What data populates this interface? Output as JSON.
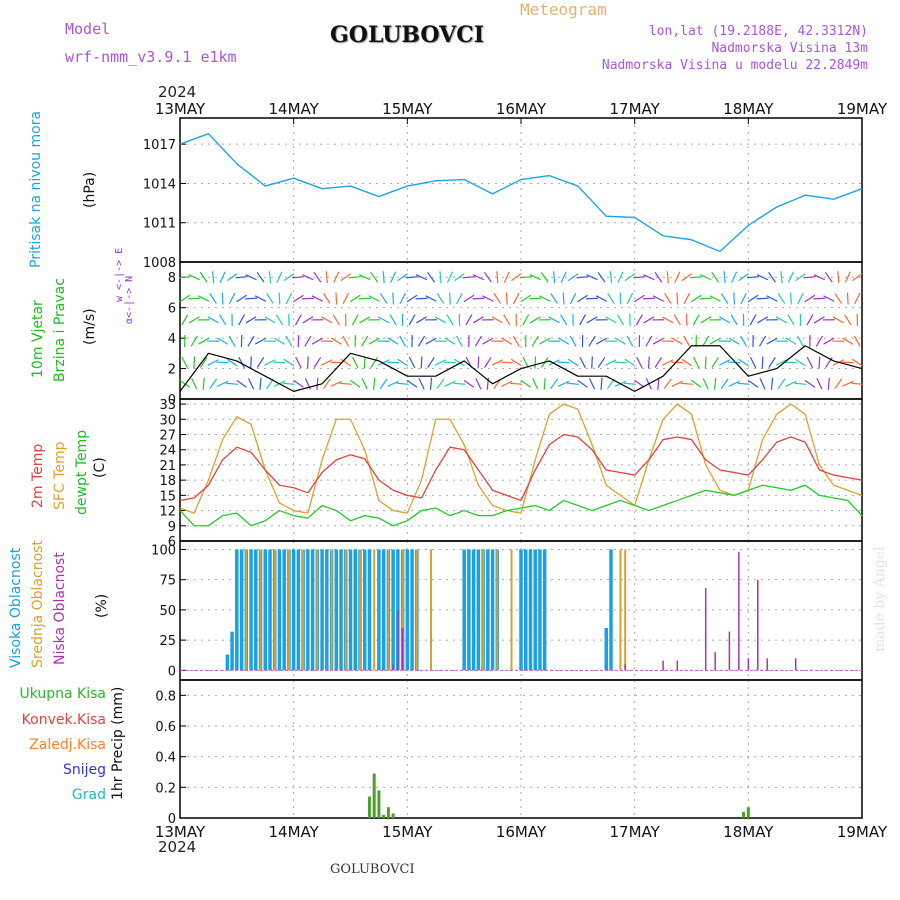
{
  "header": {
    "model_label": "Model",
    "model_name": "wrf-nmm_v3.9.1 e1km",
    "station": "GOLUBOVCI",
    "product": "Meteogram",
    "lonlat": "lon,lat (19.2188E, 42.3312N)",
    "elev": "Nadmorska Visina 13m",
    "model_elev": "Nadmorska Visina u modelu 22.2849m",
    "footer_station": "GOLUBOVCI",
    "watermark": "made by Angel"
  },
  "colors": {
    "pressure": "#1aa6e6",
    "temp2m": "#e84040",
    "sfc": "#e0a030",
    "dew": "#22cc22",
    "high_cloud": "#1aa0e6",
    "mid_cloud": "#d8a030",
    "low_cloud": "#b030b0",
    "precip": "#4aa028",
    "label_wind": "#22bb22",
    "label_wind_dir": "#9933cc",
    "label_total": "#22bb22",
    "label_conv": "#e84040",
    "label_frz": "#ff7f27",
    "label_snow": "#3333dd",
    "label_hail": "#22bbbb"
  },
  "time_axis": {
    "year": "2024",
    "days": [
      "13MAY",
      "14MAY",
      "15MAY",
      "16MAY",
      "17MAY",
      "18MAY",
      "19MAY"
    ]
  },
  "panels": {
    "pressure": {
      "label": "Pritisak na nivou mora",
      "unit": "(hPa)",
      "ticks": [
        "1017",
        "1014",
        "1011",
        "1008"
      ]
    },
    "wind": {
      "label1": "10m Vjetar",
      "label2": "Brzina i Pravac",
      "unit": "(m/s)",
      "dir_a": "w <-|-> E",
      "dir_b": "α<-|-> N",
      "ticks": [
        "8",
        "6",
        "4",
        "2",
        "0"
      ]
    },
    "temp": {
      "label_a": "2m Temp",
      "label_b": "SFC Temp",
      "label_c": "dewpt Temp",
      "unit": "(C)",
      "ticks": [
        "33",
        "30",
        "27",
        "24",
        "21",
        "18",
        "15",
        "12",
        "9",
        "6"
      ]
    },
    "cloud": {
      "label_a": "Visoka Oblacnost",
      "label_b": "Srednja Oblacnost",
      "label_c": "Niska Oblacnost",
      "unit": "(%)",
      "ticks": [
        "100",
        "75",
        "50",
        "25",
        "0"
      ]
    },
    "precip": {
      "label": "1hr Precip (mm)",
      "ticks": [
        "0.8",
        "0.6",
        "0.4",
        "0.2",
        "0"
      ],
      "legend": [
        "Ukupna Kisa",
        "Konvek.Kisa",
        "Zaledj.Kisa",
        "Snijeg",
        "Grad"
      ]
    }
  },
  "chart_data": [
    {
      "type": "line",
      "title": "Pritisak na nivou mora",
      "ylabel": "(hPa)",
      "x_unit": "hours since 13MAY 00",
      "ylim": [
        1008,
        1019
      ],
      "series": [
        {
          "name": "Pritisak na nivou mora",
          "x": [
            0,
            6,
            12,
            18,
            24,
            30,
            36,
            42,
            48,
            54,
            60,
            66,
            72,
            78,
            84,
            90,
            96,
            102,
            108,
            114,
            120,
            126,
            132,
            138,
            144
          ],
          "values": [
            1017.0,
            1017.8,
            1015.5,
            1013.8,
            1014.4,
            1013.6,
            1013.8,
            1013.0,
            1013.8,
            1014.2,
            1014.3,
            1013.2,
            1014.3,
            1014.6,
            1013.8,
            1011.5,
            1011.4,
            1010.0,
            1009.7,
            1008.8,
            1010.8,
            1012.2,
            1013.1,
            1012.8,
            1013.6
          ]
        }
      ]
    },
    {
      "type": "line",
      "title": "10m Vjetar Brzina i Pravac",
      "ylabel": "(m/s)",
      "x_unit": "hours since 13MAY 00",
      "ylim": [
        0,
        9
      ],
      "series": [
        {
          "name": "10m Vjetar",
          "x": [
            0,
            6,
            12,
            18,
            24,
            30,
            36,
            42,
            48,
            54,
            60,
            66,
            72,
            78,
            84,
            90,
            96,
            102,
            108,
            114,
            120,
            126,
            132,
            138,
            144
          ],
          "values": [
            0.5,
            3.0,
            2.5,
            1.5,
            0.5,
            1.0,
            3.0,
            2.5,
            1.5,
            1.5,
            2.5,
            1.0,
            2.0,
            2.5,
            1.5,
            1.5,
            0.5,
            1.5,
            3.5,
            3.5,
            1.5,
            2.0,
            3.5,
            2.5,
            2.0
          ]
        }
      ]
    },
    {
      "type": "line",
      "title": "",
      "ylabel": "(C)",
      "x_unit": "hours since 13MAY 00",
      "ylim": [
        6,
        34
      ],
      "series": [
        {
          "name": "2m Temp",
          "x": [
            0,
            3,
            6,
            9,
            12,
            15,
            18,
            21,
            24,
            27,
            30,
            33,
            36,
            39,
            42,
            45,
            48,
            51,
            54,
            57,
            60,
            63,
            66,
            69,
            72,
            75,
            78,
            81,
            84,
            87,
            90,
            93,
            96,
            99,
            102,
            105,
            108,
            111,
            114,
            117,
            120,
            123,
            126,
            129,
            132,
            135,
            138,
            141,
            144
          ],
          "values": [
            14,
            14.5,
            17,
            22,
            24.5,
            23.5,
            20,
            17,
            16.5,
            15.5,
            19.5,
            22,
            23,
            22.2,
            18,
            16,
            15,
            14.5,
            20,
            24.5,
            24,
            20,
            16,
            15,
            14,
            20,
            25,
            27,
            26.5,
            24,
            20,
            19.5,
            19,
            22,
            26,
            26.5,
            26,
            22,
            20,
            19.5,
            19,
            22,
            25.5,
            26.5,
            25.5,
            20,
            19,
            18.5,
            18
          ]
        },
        {
          "name": "SFC Temp",
          "x": [
            0,
            3,
            6,
            9,
            12,
            15,
            18,
            21,
            24,
            27,
            30,
            33,
            36,
            39,
            42,
            45,
            48,
            51,
            54,
            57,
            60,
            63,
            66,
            69,
            72,
            75,
            78,
            81,
            84,
            87,
            90,
            93,
            96,
            99,
            102,
            105,
            108,
            111,
            114,
            117,
            120,
            123,
            126,
            129,
            132,
            135,
            138,
            141,
            144
          ],
          "values": [
            12.5,
            11.5,
            18,
            26,
            30.5,
            29,
            20,
            13.5,
            12,
            11.5,
            22,
            30,
            30,
            24,
            14,
            12,
            11.5,
            18,
            30,
            30,
            25,
            17,
            13,
            12,
            11.5,
            22,
            31,
            33,
            32,
            25,
            17,
            15,
            13,
            22,
            30,
            33,
            31,
            21,
            16,
            15,
            16,
            26,
            31,
            33,
            31,
            21,
            17,
            16,
            15
          ]
        },
        {
          "name": "dewpt Temp",
          "x": [
            0,
            3,
            6,
            9,
            12,
            15,
            18,
            21,
            24,
            27,
            30,
            33,
            36,
            39,
            42,
            45,
            48,
            51,
            54,
            57,
            60,
            63,
            66,
            69,
            72,
            75,
            78,
            81,
            84,
            87,
            90,
            93,
            96,
            99,
            102,
            105,
            108,
            111,
            114,
            117,
            120,
            123,
            126,
            129,
            132,
            135,
            138,
            141,
            144
          ],
          "values": [
            12,
            9,
            9,
            11,
            11.5,
            9,
            10,
            12,
            11,
            10.5,
            13,
            12,
            10,
            11,
            10.5,
            9,
            10,
            12,
            12.5,
            11,
            12,
            11,
            11,
            12,
            12.5,
            13,
            12,
            14,
            13,
            12,
            13,
            14,
            13,
            12,
            13,
            14,
            15,
            16,
            15.5,
            15,
            16,
            17,
            16.5,
            16,
            17,
            15,
            14.5,
            14,
            11
          ]
        }
      ]
    },
    {
      "type": "bar",
      "title": "",
      "ylabel": "(%)",
      "x_unit": "hours since 13MAY 00",
      "ylim": [
        0,
        100
      ],
      "series": [
        {
          "name": "Visoka Oblacnost",
          "x": [
            10,
            11,
            12,
            13,
            14,
            15,
            16,
            17,
            18,
            19,
            20,
            21,
            22,
            23,
            24,
            25,
            26,
            27,
            28,
            29,
            30,
            31,
            32,
            33,
            34,
            35,
            36,
            37,
            38,
            39,
            40,
            42,
            43,
            44,
            45,
            46,
            47,
            48,
            49,
            50,
            60,
            61,
            62,
            63,
            64,
            65,
            66,
            67,
            72,
            73,
            74,
            75,
            76,
            77,
            90,
            91
          ],
          "values": [
            13,
            32,
            100,
            100,
            100,
            100,
            100,
            100,
            100,
            100,
            100,
            100,
            100,
            100,
            100,
            100,
            100,
            100,
            100,
            100,
            100,
            100,
            100,
            100,
            100,
            100,
            100,
            100,
            100,
            100,
            100,
            100,
            100,
            100,
            100,
            100,
            100,
            100,
            100,
            100,
            100,
            100,
            100,
            100,
            100,
            100,
            100,
            100,
            100,
            100,
            100,
            100,
            100,
            100,
            35,
            100
          ]
        },
        {
          "name": "Srednja Oblacnost",
          "x": [
            14,
            17,
            20,
            23,
            26,
            29,
            32,
            35,
            38,
            41,
            44,
            47,
            50,
            53,
            64,
            67,
            70,
            93,
            94
          ],
          "values": [
            100,
            100,
            100,
            100,
            100,
            100,
            100,
            100,
            100,
            100,
            100,
            100,
            100,
            100,
            100,
            100,
            100,
            100,
            100
          ]
        },
        {
          "name": "Niska Oblacnost",
          "x": [
            45,
            46,
            47,
            94,
            102,
            105,
            111,
            113,
            116,
            118,
            120,
            122,
            124,
            130
          ],
          "values": [
            5,
            50,
            35,
            5,
            8,
            8,
            68,
            15,
            32,
            98,
            10,
            75,
            10,
            10
          ]
        }
      ]
    },
    {
      "type": "bar",
      "title": "",
      "ylabel": "1hr Precip (mm)",
      "x_unit": "hours since 13MAY 00",
      "ylim": [
        0,
        0.9
      ],
      "series": [
        {
          "name": "Ukupna Kisa",
          "x": [
            40,
            41,
            42,
            43,
            44,
            45,
            119,
            120
          ],
          "values": [
            0.14,
            0.29,
            0.18,
            0.02,
            0.07,
            0.03,
            0.04,
            0.07
          ]
        }
      ]
    }
  ]
}
